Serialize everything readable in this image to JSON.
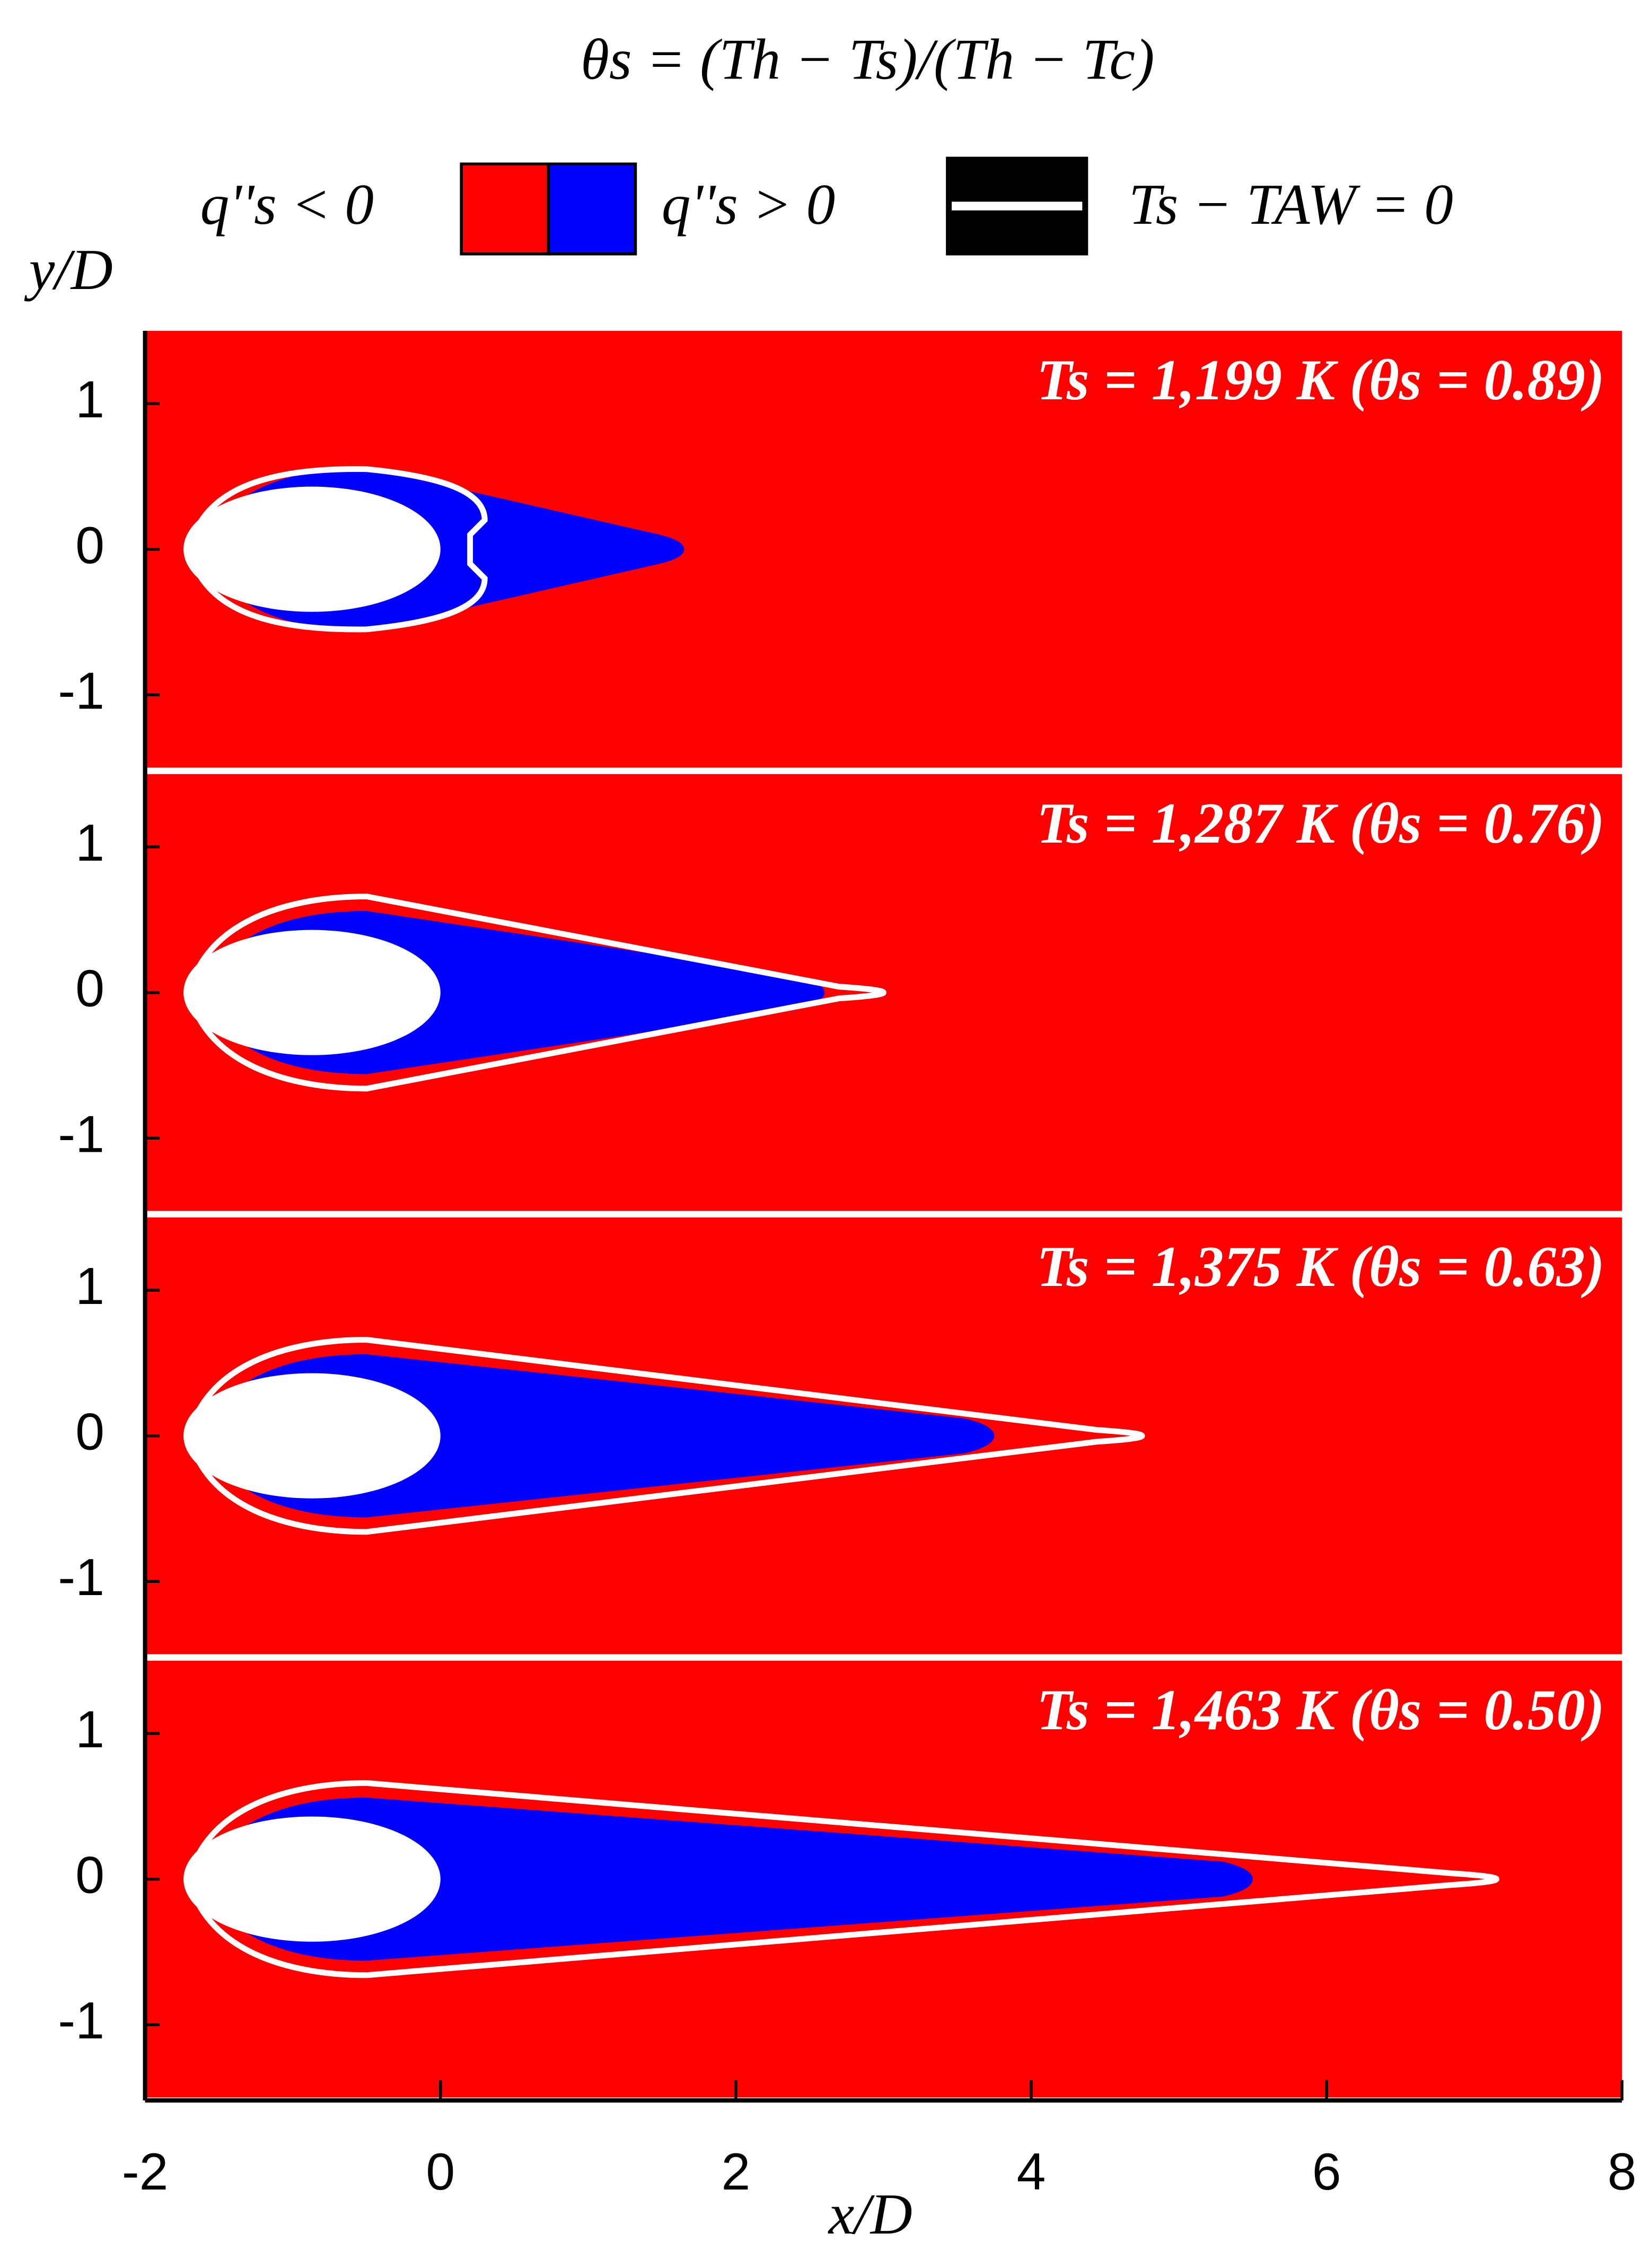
{
  "chart_data": {
    "type": "contour",
    "title": "θs = (Th − Ts)/(Th − Tc)",
    "legend": [
      {
        "name": "q''s < 0",
        "color": "#ff0000"
      },
      {
        "name": "q''s > 0",
        "color": "#0000ff"
      },
      {
        "name": "Ts − TAW = 0",
        "color": "#ffffff"
      }
    ],
    "xlabel": "x/D",
    "ylabel": "y/D",
    "xlim": [
      -2,
      8
    ],
    "xticks": [
      -2,
      0,
      2,
      4,
      6,
      8
    ],
    "ylim": [
      -1.5,
      1.5
    ],
    "yticks": [
      -1,
      0,
      1
    ],
    "panels": [
      {
        "annotation": "Ts = 1,199 K (θs = 0.89)",
        "blue_tip": 1.65,
        "aw_tip": 0.3
      },
      {
        "annotation": "Ts = 1,287 K (θs = 0.76)",
        "blue_tip": 2.6,
        "aw_tip": 3.0
      },
      {
        "annotation": "Ts = 1,375 K (θs = 0.63)",
        "blue_tip": 3.75,
        "aw_tip": 4.75
      },
      {
        "annotation": "Ts = 1,463 K (θs = 0.50)",
        "blue_tip": 5.5,
        "aw_tip": 7.15
      }
    ]
  }
}
